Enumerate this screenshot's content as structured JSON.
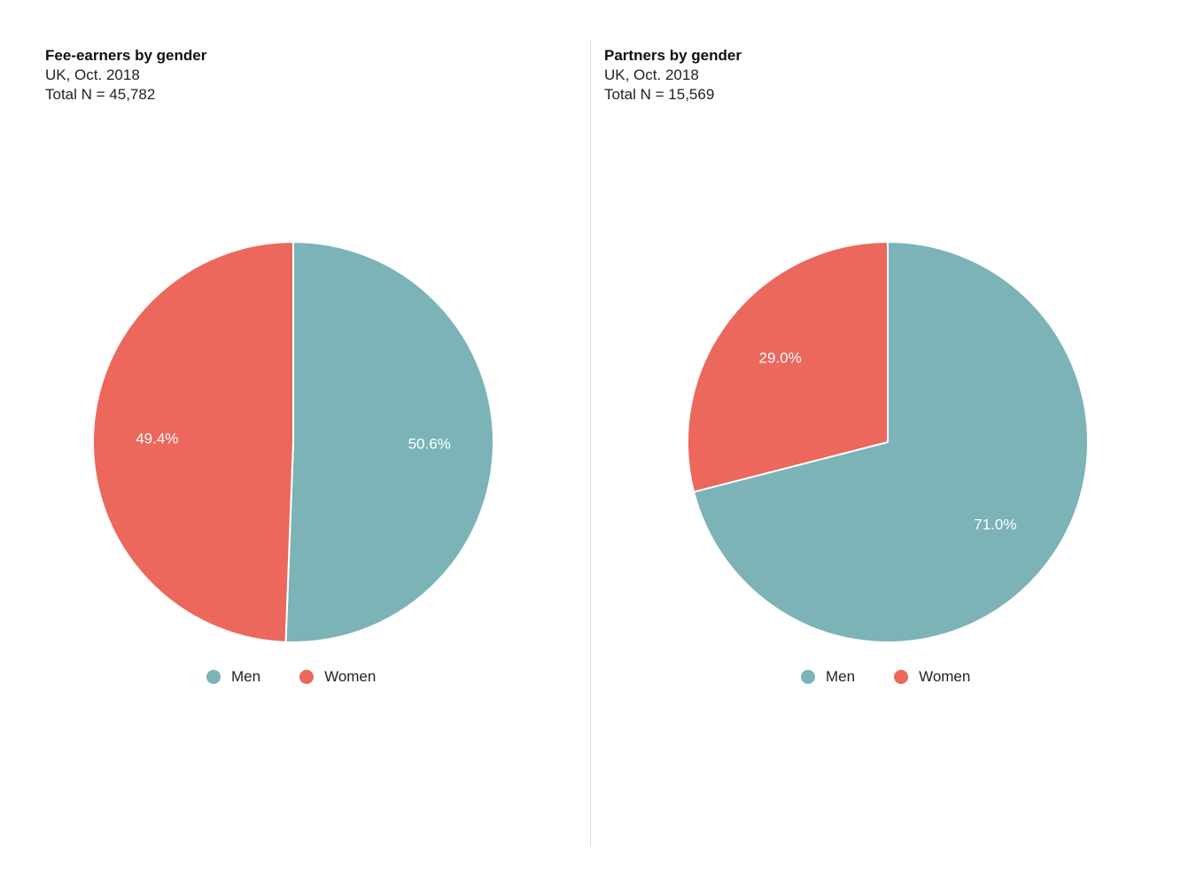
{
  "colors": {
    "men": "#7bb3b7",
    "women": "#ec675c"
  },
  "charts": [
    {
      "title": "Fee-earners by gender",
      "subtitle": "UK, Oct. 2018",
      "total": "Total N = 45,782",
      "legend": [
        "Men",
        "Women"
      ],
      "slice_labels": [
        "50.6%",
        "49.4%"
      ]
    },
    {
      "title": "Partners by gender",
      "subtitle": "UK, Oct. 2018",
      "total": "Total N = 15,569",
      "legend": [
        "Men",
        "Women"
      ],
      "slice_labels": [
        "71.0%",
        "29.0%"
      ]
    }
  ],
  "chart_data": [
    {
      "type": "pie",
      "title": "Fee-earners by gender",
      "subtitle": "UK, Oct. 2018",
      "categories": [
        "Men",
        "Women"
      ],
      "values": [
        50.6,
        49.4
      ],
      "legend": "bottom"
    },
    {
      "type": "pie",
      "title": "Partners by gender",
      "subtitle": "UK, Oct. 2018",
      "categories": [
        "Men",
        "Women"
      ],
      "values": [
        71.0,
        29.0
      ],
      "legend": "bottom"
    }
  ]
}
